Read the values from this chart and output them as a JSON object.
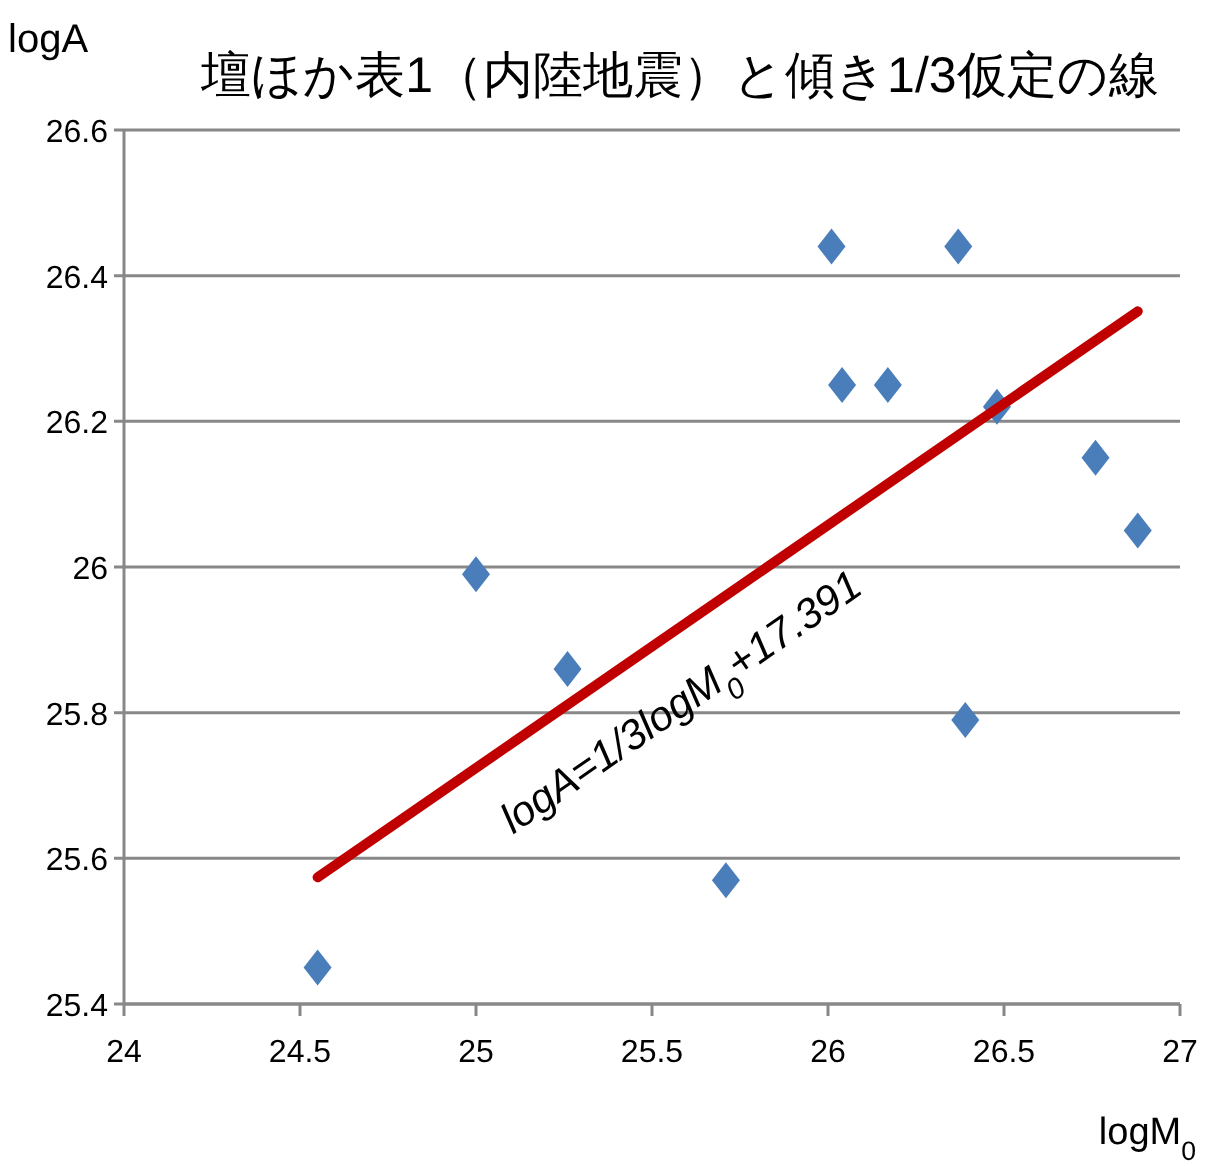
{
  "chart_data": {
    "type": "scatter",
    "title": "壇ほか表1（内陸地震）と傾き1/3仮定の線",
    "xlabel": "logM$_{0}$",
    "ylabel": "logA",
    "xlim": [
      24,
      27
    ],
    "xticks": [
      24,
      24.5,
      25,
      25.5,
      26,
      26.5,
      27
    ],
    "ylim": [
      25.4,
      26.6
    ],
    "yticks": [
      25.4,
      25.6,
      25.8,
      26,
      26.2,
      26.4,
      26.6
    ],
    "grid": "y",
    "series": [
      {
        "marker": "diamond",
        "color": "#4a7ebb",
        "x": [
          24.55,
          25.0,
          25.26,
          25.71,
          26.01,
          26.04,
          26.17,
          26.37,
          26.39,
          26.48,
          26.76,
          26.88
        ],
        "values": [
          25.45,
          25.99,
          25.86,
          25.57,
          26.44,
          26.25,
          26.25,
          26.44,
          25.79,
          26.22,
          26.15,
          26.05
        ]
      },
      {
        "type": "line",
        "color": "#c00000",
        "x": [
          24.55,
          26.88
        ],
        "values": [
          25.574,
          26.351
        ]
      }
    ],
    "annotations": [
      "logA=1/3logM$_{0}$+17.391"
    ]
  }
}
